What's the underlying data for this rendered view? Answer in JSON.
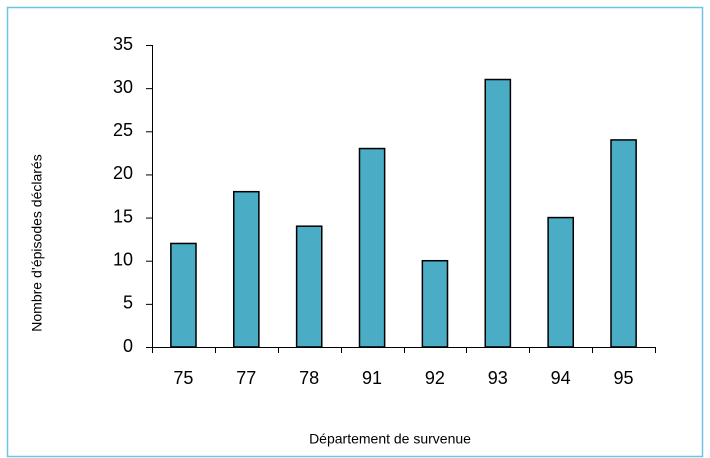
{
  "chart_data": {
    "type": "bar",
    "x_label": "Département de survenue",
    "y_label": "Nombre d’épisodes déclarés",
    "categories": [
      "75",
      "77",
      "78",
      "91",
      "92",
      "93",
      "94",
      "95"
    ],
    "values": [
      12,
      18,
      14,
      23,
      10,
      31,
      15,
      24
    ],
    "color": "#4bacc6",
    "ylim": [
      0,
      35
    ],
    "yticks": [
      0,
      5,
      10,
      15,
      20,
      25,
      30,
      35
    ],
    "grid": false
  }
}
